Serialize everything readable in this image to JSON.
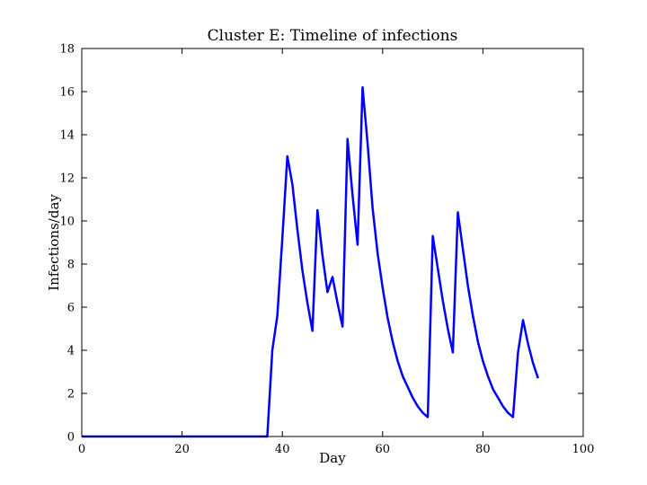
{
  "chart_data": {
    "type": "line",
    "title": "Cluster E: Timeline of infections",
    "xlabel": "Day",
    "ylabel": "Infections/day",
    "xlim": [
      0,
      100
    ],
    "ylim": [
      0,
      18
    ],
    "xticks": [
      0,
      20,
      40,
      60,
      80,
      100
    ],
    "yticks": [
      0,
      2,
      4,
      6,
      8,
      10,
      12,
      14,
      16,
      18
    ],
    "grid": false,
    "legend": "none",
    "series": [
      {
        "color": "#0000ff",
        "x": [
          0,
          37,
          38,
          39,
          40,
          41,
          42,
          43,
          44,
          45,
          46,
          47,
          48,
          49,
          50,
          51,
          52,
          53,
          54,
          55,
          56,
          57,
          58,
          59,
          60,
          61,
          62,
          63,
          64,
          65,
          66,
          67,
          68,
          69,
          70,
          71,
          72,
          73,
          74,
          75,
          76,
          77,
          78,
          79,
          80,
          81,
          82,
          83,
          84,
          85,
          86,
          87,
          88,
          89,
          90,
          91
        ],
        "y": [
          0,
          0,
          4.0,
          5.6,
          9.2,
          13.0,
          11.7,
          9.6,
          7.7,
          6.2,
          4.9,
          10.5,
          8.4,
          6.7,
          7.4,
          6.2,
          5.1,
          13.8,
          11.2,
          8.9,
          16.2,
          13.6,
          10.6,
          8.5,
          6.9,
          5.5,
          4.4,
          3.5,
          2.8,
          2.3,
          1.8,
          1.4,
          1.1,
          0.9,
          9.3,
          7.8,
          6.3,
          5.0,
          3.9,
          10.4,
          8.7,
          7.0,
          5.6,
          4.4,
          3.5,
          2.8,
          2.2,
          1.8,
          1.4,
          1.1,
          0.9,
          3.9,
          5.4,
          4.3,
          3.4,
          2.7
        ]
      }
    ]
  }
}
